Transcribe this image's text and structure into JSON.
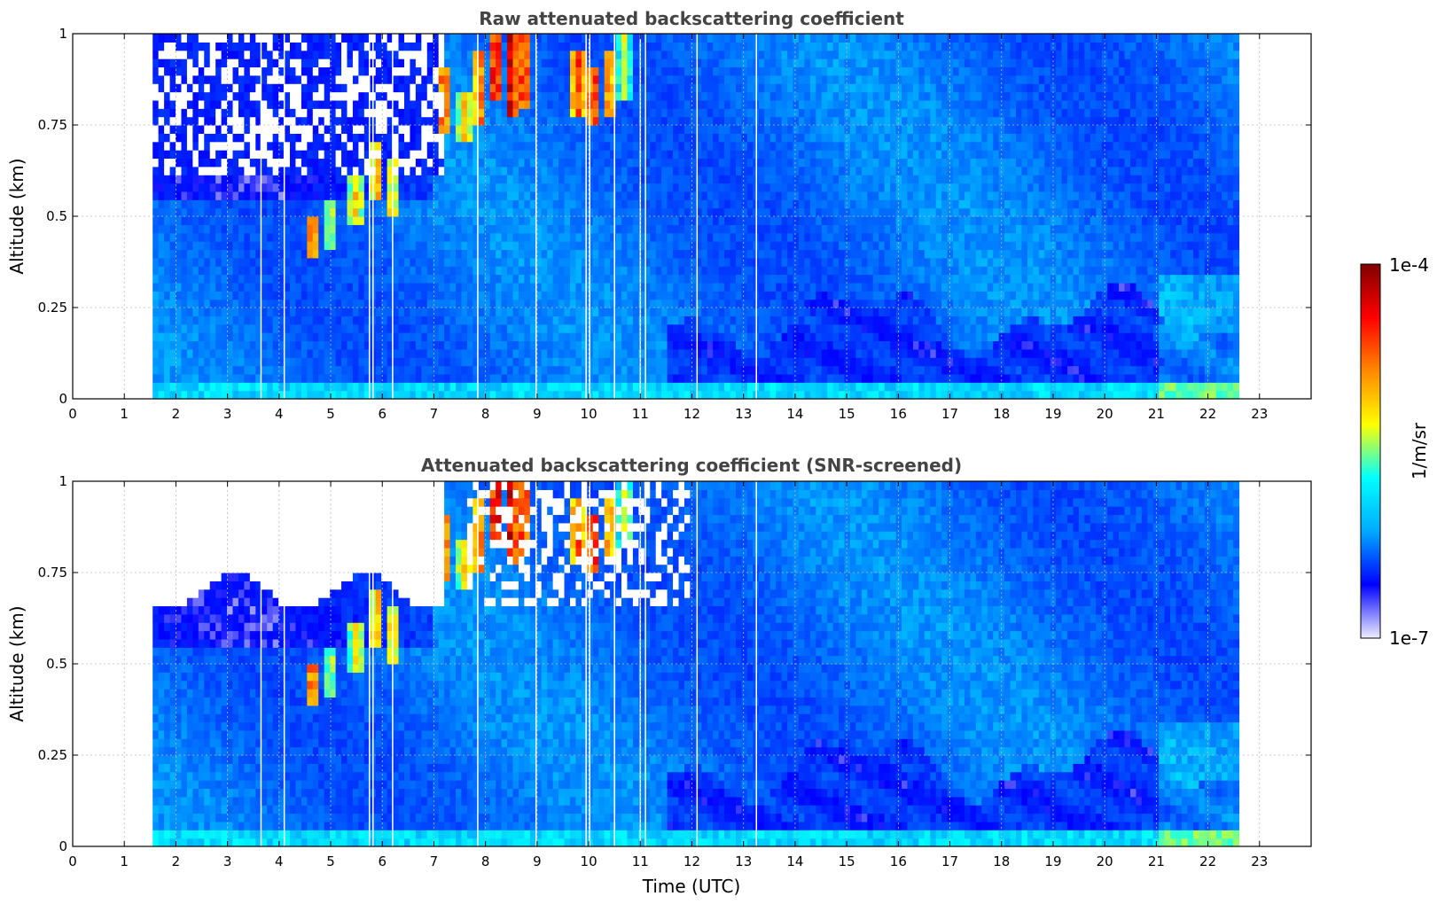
{
  "chart_data": [
    {
      "type": "heatmap",
      "title": "Raw attenuated backscattering coefficient",
      "xlabel": "",
      "ylabel": "Altitude (km)",
      "xlim": [
        0,
        24
      ],
      "ylim": [
        0,
        1
      ],
      "x_ticks": [
        "0",
        "1",
        "2",
        "3",
        "4",
        "5",
        "6",
        "7",
        "8",
        "9",
        "10",
        "11",
        "12",
        "13",
        "14",
        "15",
        "16",
        "17",
        "18",
        "19",
        "20",
        "21",
        "22",
        "23"
      ],
      "y_ticks": [
        "0",
        "0.25",
        "0.5",
        "0.75",
        "1"
      ],
      "grid": true,
      "data_time_range": [
        1.55,
        22.6
      ],
      "data_gaps": [
        3.65,
        4.1,
        5.75,
        5.82,
        6.2,
        7.85,
        8.98,
        9.95,
        10.02,
        10.5,
        11.0,
        11.1,
        12.1,
        13.25
      ],
      "screened": false
    },
    {
      "type": "heatmap",
      "title": "Attenuated backscattering coefficient (SNR-screened)",
      "xlabel": "Time (UTC)",
      "ylabel": "Altitude (km)",
      "xlim": [
        0,
        24
      ],
      "ylim": [
        0,
        1
      ],
      "x_ticks": [
        "0",
        "1",
        "2",
        "3",
        "4",
        "5",
        "6",
        "7",
        "8",
        "9",
        "10",
        "11",
        "12",
        "13",
        "14",
        "15",
        "16",
        "17",
        "18",
        "19",
        "20",
        "21",
        "22",
        "23"
      ],
      "y_ticks": [
        "0",
        "0.25",
        "0.5",
        "0.75",
        "1"
      ],
      "grid": true,
      "data_time_range": [
        1.55,
        22.6
      ],
      "data_gaps": [
        3.65,
        4.1,
        5.75,
        5.82,
        6.2,
        7.85,
        8.98,
        9.95,
        10.02,
        10.5,
        11.0,
        11.1,
        12.1,
        13.25
      ],
      "screened": true
    }
  ],
  "colorbar": {
    "label": "1/m/sr",
    "max_label": "1e-4",
    "min_label": "1e-7",
    "scale": "log",
    "colormap": "jet",
    "colors": [
      "#eeeeff",
      "#0000ff",
      "#00aaff",
      "#00ffff",
      "#ffff00",
      "#ff8800",
      "#ff0000",
      "#800000"
    ]
  }
}
